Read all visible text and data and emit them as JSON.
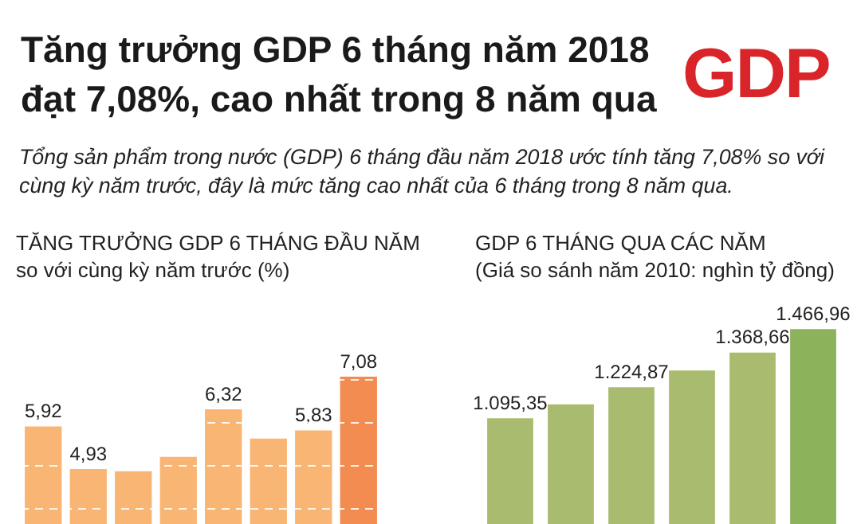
{
  "chart_data": [
    {
      "type": "other",
      "title": "Tăng trưởng GDP 6 tháng năm 2018 đạt 7,08%, cao nhất trong 8 năm qua",
      "subtitle": "Tổng sản phẩm trong nước (GDP) 6 tháng đầu năm 2018 ước tính tăng 7,08% so với cùng kỳ năm trước, đây là mức tăng cao nhất của 6 tháng trong 8 năm qua.",
      "annotations": [
        "GDP"
      ]
    },
    {
      "type": "bar",
      "title": "TĂNG TRƯỞNG GDP 6 THÁNG ĐẦU NĂM",
      "subtitle": "so với cùng kỳ năm trước (%)",
      "categories": [
        null,
        null,
        null,
        null,
        null,
        null,
        null,
        null
      ],
      "values": [
        5.92,
        4.93,
        4.88,
        5.21,
        6.32,
        5.64,
        5.83,
        7.08
      ],
      "colors": [
        "#f9b574",
        "#f9b574",
        "#f9b574",
        "#f9b574",
        "#f9b574",
        "#f9b574",
        "#f9b574",
        "#f28c50"
      ],
      "value_labels": [
        "5,92",
        "4,93",
        null,
        null,
        "6,32",
        null,
        "5,83",
        "7,08"
      ],
      "yticks": [
        {
          "value": 4,
          "label": null
        },
        {
          "value": 5,
          "label": null
        },
        {
          "value": 6,
          "label": null
        },
        {
          "value": 7,
          "label": null
        }
      ],
      "grid": "y"
    },
    {
      "type": "bar",
      "title": "GDP 6 THÁNG QUA CÁC NĂM",
      "subtitle": "(Giá so sánh năm 2010: nghìn tỷ đồng)",
      "categories": [
        null,
        null,
        null,
        null,
        null,
        null
      ],
      "values": [
        1095.35,
        1153,
        1224.87,
        1294,
        1368.66,
        1466.96
      ],
      "colors": [
        "#a9bb6e",
        "#a9bb6e",
        "#a9bb6e",
        "#a9bb6e",
        "#a9bb6e",
        "#8db25c"
      ],
      "value_labels": [
        "1.095,35",
        null,
        "1.224,87",
        null,
        "1.368,66",
        "1.466,96"
      ],
      "grid": false
    }
  ]
}
